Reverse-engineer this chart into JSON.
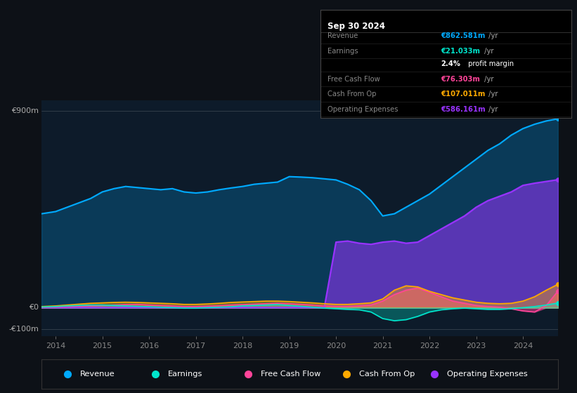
{
  "bg_color": "#0d1117",
  "plot_bg_color": "#0d1b2a",
  "colors": {
    "revenue": "#00aaff",
    "earnings": "#00e5cc",
    "free_cash_flow": "#ff4499",
    "cash_from_op": "#ffaa00",
    "operating_expenses": "#9933ff"
  },
  "legend": [
    {
      "label": "Revenue",
      "color": "#00aaff"
    },
    {
      "label": "Earnings",
      "color": "#00e5cc"
    },
    {
      "label": "Free Cash Flow",
      "color": "#ff4499"
    },
    {
      "label": "Cash From Op",
      "color": "#ffaa00"
    },
    {
      "label": "Operating Expenses",
      "color": "#9933ff"
    }
  ],
  "info_box": {
    "title": "Sep 30 2024",
    "rows": [
      {
        "label": "Revenue",
        "value": "€862.581m /yr",
        "value_color": "#00aaff"
      },
      {
        "label": "Earnings",
        "value": "€21.033m /yr",
        "value_color": "#00e5cc"
      },
      {
        "label": "",
        "value": "2.4% profit margin",
        "value_color": "#ffffff"
      },
      {
        "label": "Free Cash Flow",
        "value": "€76.303m /yr",
        "value_color": "#ff4499"
      },
      {
        "label": "Cash From Op",
        "value": "€107.011m /yr",
        "value_color": "#ffaa00"
      },
      {
        "label": "Operating Expenses",
        "value": "€586.161m /yr",
        "value_color": "#9933ff"
      }
    ]
  },
  "ylabel_900": "€900m",
  "ylabel_0": "€0",
  "ylabel_neg100": "-€100m",
  "x_years": [
    2013.7,
    2014,
    2014.25,
    2014.5,
    2014.75,
    2015,
    2015.25,
    2015.5,
    2015.75,
    2016,
    2016.25,
    2016.5,
    2016.75,
    2017,
    2017.25,
    2017.5,
    2017.75,
    2018,
    2018.25,
    2018.5,
    2018.75,
    2019,
    2019.25,
    2019.5,
    2019.75,
    2020,
    2020.25,
    2020.5,
    2020.75,
    2021,
    2021.25,
    2021.5,
    2021.75,
    2022,
    2022.25,
    2022.5,
    2022.75,
    2023,
    2023.25,
    2023.5,
    2023.75,
    2024,
    2024.25,
    2024.5,
    2024.75
  ],
  "revenue": [
    430,
    440,
    460,
    480,
    500,
    530,
    545,
    555,
    550,
    545,
    540,
    545,
    530,
    525,
    530,
    540,
    548,
    555,
    565,
    570,
    575,
    600,
    598,
    595,
    590,
    585,
    565,
    540,
    490,
    420,
    430,
    460,
    490,
    520,
    560,
    600,
    640,
    680,
    720,
    750,
    790,
    820,
    840,
    855,
    865
  ],
  "earnings": [
    3,
    5,
    8,
    10,
    12,
    12,
    10,
    8,
    6,
    4,
    2,
    0,
    -2,
    -2,
    0,
    2,
    4,
    8,
    10,
    12,
    14,
    10,
    6,
    2,
    -2,
    -5,
    -8,
    -10,
    -20,
    -50,
    -60,
    -55,
    -40,
    -20,
    -10,
    -5,
    -2,
    -5,
    -8,
    -8,
    -5,
    0,
    5,
    12,
    21
  ],
  "free_cash_flow": [
    2,
    3,
    5,
    7,
    8,
    10,
    12,
    14,
    15,
    12,
    10,
    8,
    5,
    5,
    7,
    9,
    12,
    14,
    16,
    18,
    20,
    18,
    15,
    12,
    8,
    5,
    5,
    8,
    12,
    30,
    60,
    80,
    90,
    70,
    50,
    30,
    20,
    10,
    5,
    2,
    -5,
    -15,
    -20,
    10,
    76
  ],
  "cash_from_op": [
    5,
    8,
    12,
    16,
    20,
    22,
    24,
    25,
    24,
    22,
    20,
    18,
    15,
    15,
    17,
    20,
    24,
    26,
    28,
    30,
    30,
    28,
    25,
    22,
    18,
    15,
    15,
    18,
    22,
    40,
    80,
    100,
    95,
    75,
    60,
    45,
    35,
    25,
    20,
    18,
    20,
    30,
    50,
    80,
    107
  ],
  "op_exp": [
    0,
    0,
    0,
    0,
    0,
    0,
    0,
    0,
    0,
    0,
    0,
    0,
    0,
    0,
    0,
    0,
    0,
    0,
    0,
    0,
    0,
    0,
    0,
    0,
    0,
    300,
    305,
    295,
    290,
    300,
    305,
    295,
    300,
    330,
    360,
    390,
    420,
    460,
    490,
    510,
    530,
    560,
    570,
    578,
    586
  ],
  "ylim_min": -130,
  "ylim_max": 950,
  "gridline_900": 900,
  "gridline_0": 0,
  "gridline_neg100": -100,
  "xticks": [
    2014,
    2015,
    2016,
    2017,
    2018,
    2019,
    2020,
    2021,
    2022,
    2023,
    2024
  ]
}
